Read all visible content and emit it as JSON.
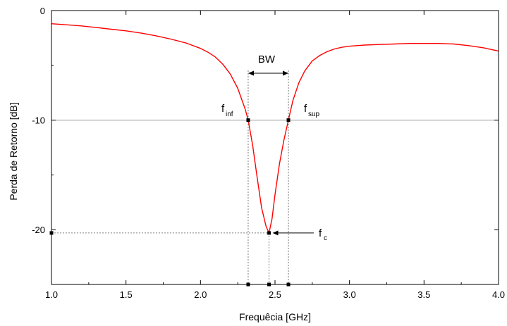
{
  "chart_data": {
    "type": "line",
    "xlabel": "Frequêcia [GHz]",
    "ylabel": "Perda de Retorno [dB]",
    "xlim": [
      1.0,
      4.0
    ],
    "ylim": [
      -25,
      0
    ],
    "xticks": [
      "1.0",
      "1.5",
      "2.0",
      "2.5",
      "3.0",
      "3.5",
      "4.0"
    ],
    "yticks": [
      "0",
      "-10",
      "-20"
    ],
    "grid": false,
    "reference_line_y": -10,
    "series": [
      {
        "color": "#ff0000",
        "x": [
          1.0,
          1.1,
          1.2,
          1.3,
          1.4,
          1.5,
          1.6,
          1.7,
          1.8,
          1.9,
          2.0,
          2.05,
          2.1,
          2.15,
          2.2,
          2.25,
          2.3,
          2.32,
          2.35,
          2.38,
          2.41,
          2.44,
          2.46,
          2.48,
          2.5,
          2.53,
          2.56,
          2.59,
          2.62,
          2.66,
          2.7,
          2.75,
          2.8,
          2.85,
          2.9,
          2.95,
          3.0,
          3.1,
          3.2,
          3.3,
          3.4,
          3.5,
          3.6,
          3.7,
          3.8,
          3.9,
          4.0
        ],
        "y": [
          -1.2,
          -1.3,
          -1.4,
          -1.55,
          -1.7,
          -1.85,
          -2.05,
          -2.3,
          -2.6,
          -2.95,
          -3.45,
          -3.8,
          -4.25,
          -4.9,
          -5.8,
          -7.1,
          -9.0,
          -10.0,
          -12.3,
          -15.2,
          -18.0,
          -19.7,
          -20.3,
          -19.0,
          -16.8,
          -14.0,
          -11.8,
          -10.0,
          -8.2,
          -6.6,
          -5.5,
          -4.6,
          -4.1,
          -3.75,
          -3.5,
          -3.35,
          -3.25,
          -3.15,
          -3.1,
          -3.05,
          -3.0,
          -3.0,
          -3.0,
          -3.05,
          -3.2,
          -3.4,
          -3.7
        ]
      }
    ],
    "markers": {
      "f_inf": {
        "x": 2.32,
        "y": -10
      },
      "f_sup": {
        "x": 2.59,
        "y": -10
      },
      "f_c": {
        "x": 2.46,
        "y": -20.3
      }
    },
    "annotations": {
      "bw": "BW",
      "f_inf_main": "f",
      "f_inf_sub": "inf",
      "f_sup_main": "f",
      "f_sup_sub": "sup",
      "f_c_main": "f",
      "f_c_sub": "c"
    }
  }
}
